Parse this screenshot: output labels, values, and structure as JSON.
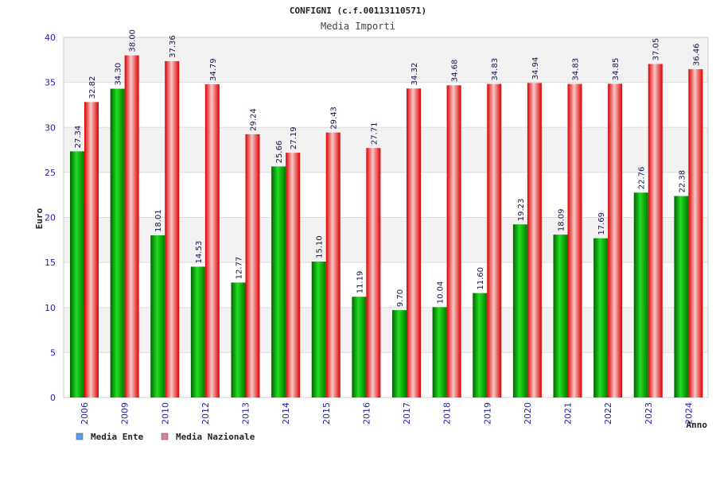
{
  "chart_data": {
    "type": "bar",
    "title": "CONFIGNI (c.f.00113110571)",
    "subtitle": "Media Importi",
    "xlabel": "Anno",
    "ylabel": "Euro",
    "ylim": [
      0,
      40
    ],
    "yticks": [
      0,
      5,
      10,
      15,
      20,
      25,
      30,
      35,
      40
    ],
    "grid": true,
    "legend_position": "bottom-left",
    "categories": [
      "2006",
      "2009",
      "2010",
      "2012",
      "2013",
      "2014",
      "2015",
      "2016",
      "2017",
      "2018",
      "2019",
      "2020",
      "2021",
      "2022",
      "2023",
      "2024"
    ],
    "series": [
      {
        "name": "Media Ente",
        "legend_color": "#5aa0e6",
        "values": [
          27.34,
          34.3,
          18.01,
          14.53,
          12.77,
          25.66,
          15.1,
          11.19,
          9.7,
          10.04,
          11.6,
          19.23,
          18.09,
          17.69,
          22.76,
          22.38
        ],
        "labels": [
          "27.34",
          "34.30",
          "18.01",
          "14.53",
          "12.77",
          "25.66",
          "15.10",
          "11.19",
          "9.70",
          "10.04",
          "11.60",
          "19.23",
          "18.09",
          "17.69",
          "22.76",
          "22.38"
        ]
      },
      {
        "name": "Media Nazionale",
        "legend_color": "#e07aa8",
        "values": [
          32.82,
          38.0,
          37.36,
          34.79,
          29.24,
          27.19,
          29.43,
          27.71,
          34.32,
          34.68,
          34.83,
          34.94,
          34.83,
          34.85,
          37.05,
          36.46
        ],
        "labels": [
          "32.82",
          "38.00",
          "37.36",
          "34.79",
          "29.24",
          "27.19",
          "29.43",
          "27.71",
          "34.32",
          "34.68",
          "34.83",
          "34.94",
          "34.83",
          "34.85",
          "37.05",
          "36.46"
        ]
      }
    ]
  },
  "colors": {
    "series1_dark": "#006400",
    "series1_mid": "#22dd22",
    "series2_dark": "#dd0000",
    "series2_light": "#f8c8c8",
    "band": "#f2f2f2",
    "grid": "#dddddd",
    "axis_text": "#1f1fa8"
  }
}
